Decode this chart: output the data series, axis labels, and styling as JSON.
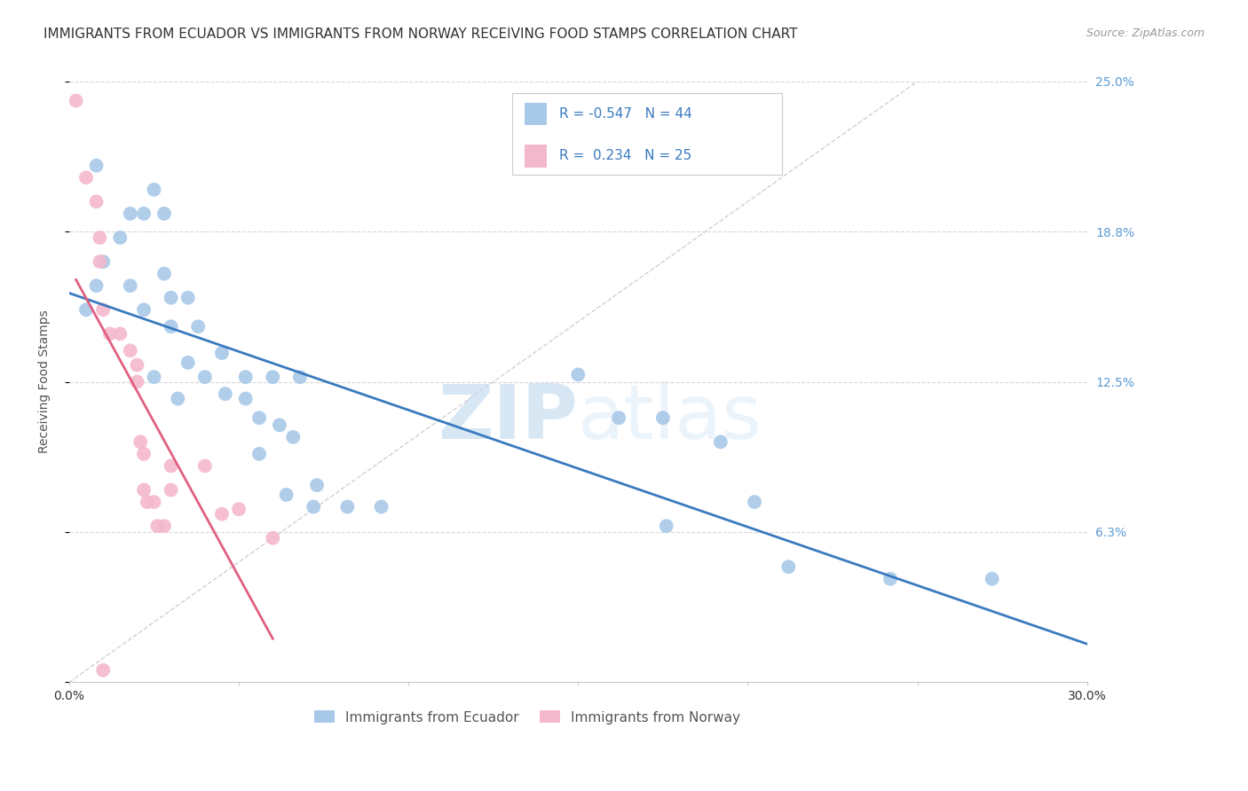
{
  "title": "IMMIGRANTS FROM ECUADOR VS IMMIGRANTS FROM NORWAY RECEIVING FOOD STAMPS CORRELATION CHART",
  "source": "Source: ZipAtlas.com",
  "ylabel": "Receiving Food Stamps",
  "xlim": [
    0.0,
    0.3
  ],
  "ylim": [
    0.0,
    0.25
  ],
  "yticks": [
    0.0,
    0.0625,
    0.125,
    0.1875,
    0.25
  ],
  "ytick_labels": [
    "",
    "6.3%",
    "12.5%",
    "18.8%",
    "25.0%"
  ],
  "xticks": [
    0.0,
    0.05,
    0.1,
    0.15,
    0.2,
    0.25,
    0.3
  ],
  "xtick_labels": [
    "0.0%",
    "",
    "",
    "",
    "",
    "",
    "30.0%"
  ],
  "ecuador_R": -0.547,
  "ecuador_N": 44,
  "norway_R": 0.234,
  "norway_N": 25,
  "ecuador_color": "#a8c8e8",
  "norway_color": "#f4b8cc",
  "ecuador_line_color": "#3a7abf",
  "norway_line_color": "#e06080",
  "legend_ecuador_label": "Immigrants from Ecuador",
  "legend_norway_label": "Immigrants from Norway",
  "ecuador_points": [
    [
      0.005,
      0.155
    ],
    [
      0.01,
      0.175
    ],
    [
      0.018,
      0.195
    ],
    [
      0.022,
      0.195
    ],
    [
      0.008,
      0.215
    ],
    [
      0.025,
      0.205
    ],
    [
      0.028,
      0.195
    ],
    [
      0.015,
      0.185
    ],
    [
      0.008,
      0.165
    ],
    [
      0.018,
      0.165
    ],
    [
      0.028,
      0.17
    ],
    [
      0.022,
      0.155
    ],
    [
      0.03,
      0.16
    ],
    [
      0.035,
      0.16
    ],
    [
      0.03,
      0.148
    ],
    [
      0.038,
      0.148
    ],
    [
      0.035,
      0.133
    ],
    [
      0.045,
      0.137
    ],
    [
      0.04,
      0.127
    ],
    [
      0.025,
      0.127
    ],
    [
      0.032,
      0.118
    ],
    [
      0.046,
      0.12
    ],
    [
      0.052,
      0.127
    ],
    [
      0.06,
      0.127
    ],
    [
      0.068,
      0.127
    ],
    [
      0.052,
      0.118
    ],
    [
      0.056,
      0.11
    ],
    [
      0.062,
      0.107
    ],
    [
      0.066,
      0.102
    ],
    [
      0.056,
      0.095
    ],
    [
      0.073,
      0.082
    ],
    [
      0.064,
      0.078
    ],
    [
      0.072,
      0.073
    ],
    [
      0.082,
      0.073
    ],
    [
      0.092,
      0.073
    ],
    [
      0.15,
      0.128
    ],
    [
      0.162,
      0.11
    ],
    [
      0.175,
      0.11
    ],
    [
      0.176,
      0.065
    ],
    [
      0.192,
      0.1
    ],
    [
      0.202,
      0.075
    ],
    [
      0.212,
      0.048
    ],
    [
      0.242,
      0.043
    ],
    [
      0.272,
      0.043
    ]
  ],
  "norway_points": [
    [
      0.002,
      0.242
    ],
    [
      0.005,
      0.21
    ],
    [
      0.008,
      0.2
    ],
    [
      0.009,
      0.185
    ],
    [
      0.009,
      0.175
    ],
    [
      0.01,
      0.155
    ],
    [
      0.012,
      0.145
    ],
    [
      0.015,
      0.145
    ],
    [
      0.018,
      0.138
    ],
    [
      0.02,
      0.132
    ],
    [
      0.02,
      0.125
    ],
    [
      0.021,
      0.1
    ],
    [
      0.022,
      0.095
    ],
    [
      0.022,
      0.08
    ],
    [
      0.023,
      0.075
    ],
    [
      0.025,
      0.075
    ],
    [
      0.026,
      0.065
    ],
    [
      0.028,
      0.065
    ],
    [
      0.03,
      0.09
    ],
    [
      0.03,
      0.08
    ],
    [
      0.04,
      0.09
    ],
    [
      0.045,
      0.07
    ],
    [
      0.05,
      0.072
    ],
    [
      0.06,
      0.06
    ],
    [
      0.01,
      0.005
    ]
  ],
  "watermark_zip": "ZIP",
  "watermark_atlas": "atlas",
  "background_color": "#ffffff",
  "grid_color": "#cccccc",
  "title_fontsize": 11,
  "axis_label_fontsize": 10,
  "tick_fontsize": 10,
  "legend_fontsize": 11,
  "source_fontsize": 9
}
